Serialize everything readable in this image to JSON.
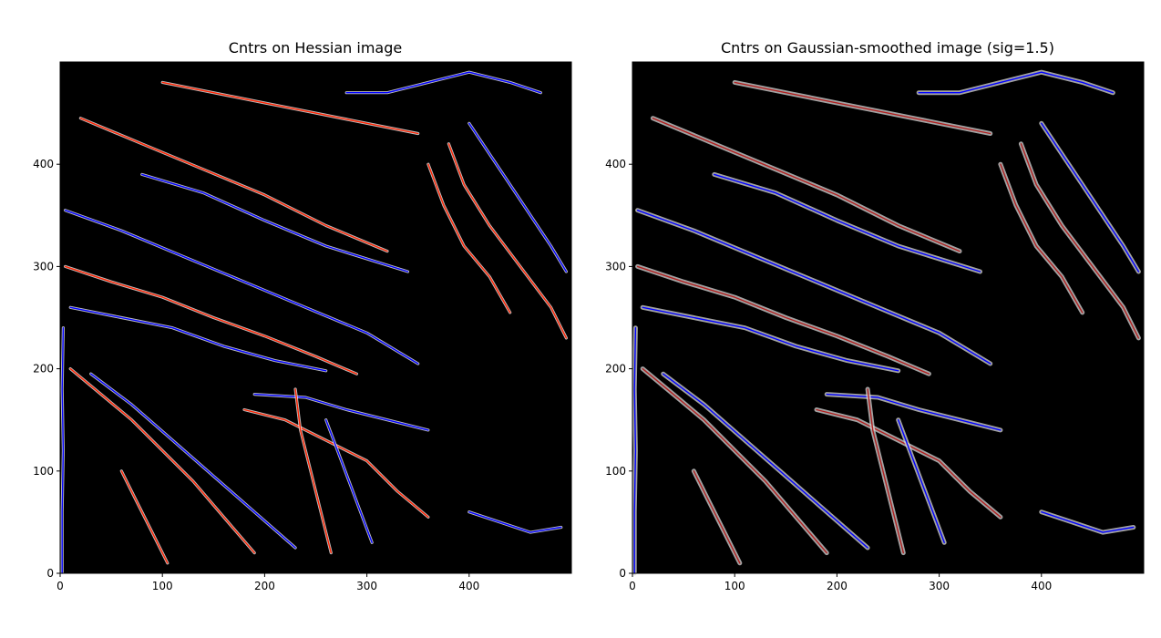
{
  "chart_data": [
    {
      "type": "heatmap",
      "title": "Cntrs on Hessian image",
      "xlabel": "",
      "ylabel": "",
      "xlim": [
        0,
        500
      ],
      "ylim": [
        0,
        500
      ],
      "origin": "lower",
      "background": "#000000",
      "xticks": [
        0,
        100,
        200,
        300,
        400
      ],
      "yticks": [
        0,
        100,
        200,
        300,
        400
      ],
      "contour_colors": [
        "#ff2200",
        "#ffffff",
        "#0000ff"
      ],
      "contours": [
        {
          "color": "#0000ff",
          "points": [
            [
              5,
              355
            ],
            [
              60,
              335
            ],
            [
              120,
              310
            ],
            [
              180,
              285
            ],
            [
              240,
              260
            ],
            [
              300,
              235
            ],
            [
              350,
              205
            ]
          ]
        },
        {
          "color": "#ff2200",
          "points": [
            [
              20,
              445
            ],
            [
              80,
              420
            ],
            [
              140,
              395
            ],
            [
              200,
              370
            ],
            [
              260,
              340
            ],
            [
              320,
              315
            ]
          ]
        },
        {
          "color": "#0000ff",
          "points": [
            [
              80,
              390
            ],
            [
              140,
              372
            ],
            [
              200,
              345
            ],
            [
              260,
              320
            ],
            [
              340,
              295
            ]
          ]
        },
        {
          "color": "#ff2200",
          "points": [
            [
              5,
              300
            ],
            [
              50,
              285
            ],
            [
              100,
              270
            ],
            [
              150,
              250
            ],
            [
              200,
              232
            ],
            [
              250,
              212
            ],
            [
              290,
              195
            ]
          ]
        },
        {
          "color": "#0000ff",
          "points": [
            [
              10,
              260
            ],
            [
              60,
              250
            ],
            [
              110,
              240
            ],
            [
              160,
              222
            ],
            [
              210,
              208
            ],
            [
              260,
              198
            ]
          ]
        },
        {
          "color": "#ff2200",
          "points": [
            [
              10,
              200
            ],
            [
              40,
              175
            ],
            [
              70,
              150
            ],
            [
              100,
              120
            ],
            [
              130,
              90
            ],
            [
              160,
              55
            ],
            [
              190,
              20
            ]
          ]
        },
        {
          "color": "#0000ff",
          "points": [
            [
              30,
              195
            ],
            [
              70,
              165
            ],
            [
              110,
              130
            ],
            [
              150,
              95
            ],
            [
              190,
              60
            ],
            [
              230,
              25
            ]
          ]
        },
        {
          "color": "#ff2200",
          "points": [
            [
              180,
              160
            ],
            [
              220,
              150
            ],
            [
              260,
              130
            ],
            [
              300,
              110
            ],
            [
              330,
              80
            ],
            [
              360,
              55
            ]
          ]
        },
        {
          "color": "#0000ff",
          "points": [
            [
              190,
              175
            ],
            [
              240,
              172
            ],
            [
              280,
              160
            ],
            [
              320,
              150
            ],
            [
              360,
              140
            ]
          ]
        },
        {
          "color": "#ff2200",
          "points": [
            [
              380,
              420
            ],
            [
              395,
              380
            ],
            [
              420,
              340
            ],
            [
              450,
              300
            ],
            [
              480,
              260
            ],
            [
              495,
              230
            ]
          ]
        },
        {
          "color": "#0000ff",
          "points": [
            [
              400,
              440
            ],
            [
              420,
              410
            ],
            [
              440,
              380
            ],
            [
              460,
              350
            ],
            [
              480,
              320
            ],
            [
              495,
              295
            ]
          ]
        },
        {
          "color": "#ff2200",
          "points": [
            [
              360,
              400
            ],
            [
              375,
              360
            ],
            [
              395,
              320
            ],
            [
              420,
              290
            ],
            [
              440,
              255
            ]
          ]
        },
        {
          "color": "#0000ff",
          "points": [
            [
              280,
              470
            ],
            [
              320,
              470
            ],
            [
              360,
              480
            ],
            [
              400,
              490
            ],
            [
              440,
              480
            ],
            [
              470,
              470
            ]
          ]
        },
        {
          "color": "#ff2200",
          "points": [
            [
              100,
              480
            ],
            [
              150,
              470
            ],
            [
              200,
              460
            ],
            [
              250,
              450
            ],
            [
              300,
              440
            ],
            [
              350,
              430
            ]
          ]
        },
        {
          "color": "#0000ff",
          "points": [
            [
              2,
              0
            ],
            [
              2,
              60
            ],
            [
              3,
              120
            ],
            [
              2,
              180
            ],
            [
              3,
              240
            ]
          ]
        },
        {
          "color": "#ff2200",
          "points": [
            [
              230,
              180
            ],
            [
              235,
              140
            ],
            [
              245,
              100
            ],
            [
              255,
              60
            ],
            [
              265,
              20
            ]
          ]
        },
        {
          "color": "#0000ff",
          "points": [
            [
              260,
              150
            ],
            [
              275,
              110
            ],
            [
              290,
              70
            ],
            [
              305,
              30
            ]
          ]
        },
        {
          "color": "#ff2200",
          "points": [
            [
              60,
              100
            ],
            [
              75,
              70
            ],
            [
              90,
              40
            ],
            [
              105,
              10
            ]
          ]
        },
        {
          "color": "#0000ff",
          "points": [
            [
              400,
              60
            ],
            [
              430,
              50
            ],
            [
              460,
              40
            ],
            [
              490,
              45
            ]
          ]
        }
      ]
    },
    {
      "type": "heatmap",
      "title": "Cntrs on Gaussian-smoothed image (sig=1.5)",
      "xlabel": "",
      "ylabel": "",
      "xlim": [
        0,
        500
      ],
      "ylim": [
        0,
        500
      ],
      "origin": "lower",
      "background": "#000000",
      "xticks": [
        0,
        100,
        200,
        300,
        400
      ],
      "yticks": [
        0,
        100,
        200,
        300,
        400
      ],
      "contour_colors": [
        "#b02020",
        "#d8d8d8",
        "#0000ff"
      ],
      "contours": [
        {
          "color": "#0000ff",
          "points": [
            [
              5,
              355
            ],
            [
              60,
              335
            ],
            [
              120,
              310
            ],
            [
              180,
              285
            ],
            [
              240,
              260
            ],
            [
              300,
              235
            ],
            [
              350,
              205
            ]
          ]
        },
        {
          "color": "#b02020",
          "points": [
            [
              20,
              445
            ],
            [
              80,
              420
            ],
            [
              140,
              395
            ],
            [
              200,
              370
            ],
            [
              260,
              340
            ],
            [
              320,
              315
            ]
          ]
        },
        {
          "color": "#0000ff",
          "points": [
            [
              80,
              390
            ],
            [
              140,
              372
            ],
            [
              200,
              345
            ],
            [
              260,
              320
            ],
            [
              340,
              295
            ]
          ]
        },
        {
          "color": "#b02020",
          "points": [
            [
              5,
              300
            ],
            [
              50,
              285
            ],
            [
              100,
              270
            ],
            [
              150,
              250
            ],
            [
              200,
              232
            ],
            [
              250,
              212
            ],
            [
              290,
              195
            ]
          ]
        },
        {
          "color": "#0000ff",
          "points": [
            [
              10,
              260
            ],
            [
              60,
              250
            ],
            [
              110,
              240
            ],
            [
              160,
              222
            ],
            [
              210,
              208
            ],
            [
              260,
              198
            ]
          ]
        },
        {
          "color": "#b02020",
          "points": [
            [
              10,
              200
            ],
            [
              40,
              175
            ],
            [
              70,
              150
            ],
            [
              100,
              120
            ],
            [
              130,
              90
            ],
            [
              160,
              55
            ],
            [
              190,
              20
            ]
          ]
        },
        {
          "color": "#0000ff",
          "points": [
            [
              30,
              195
            ],
            [
              70,
              165
            ],
            [
              110,
              130
            ],
            [
              150,
              95
            ],
            [
              190,
              60
            ],
            [
              230,
              25
            ]
          ]
        },
        {
          "color": "#b02020",
          "points": [
            [
              180,
              160
            ],
            [
              220,
              150
            ],
            [
              260,
              130
            ],
            [
              300,
              110
            ],
            [
              330,
              80
            ],
            [
              360,
              55
            ]
          ]
        },
        {
          "color": "#0000ff",
          "points": [
            [
              190,
              175
            ],
            [
              240,
              172
            ],
            [
              280,
              160
            ],
            [
              320,
              150
            ],
            [
              360,
              140
            ]
          ]
        },
        {
          "color": "#b02020",
          "points": [
            [
              380,
              420
            ],
            [
              395,
              380
            ],
            [
              420,
              340
            ],
            [
              450,
              300
            ],
            [
              480,
              260
            ],
            [
              495,
              230
            ]
          ]
        },
        {
          "color": "#0000ff",
          "points": [
            [
              400,
              440
            ],
            [
              420,
              410
            ],
            [
              440,
              380
            ],
            [
              460,
              350
            ],
            [
              480,
              320
            ],
            [
              495,
              295
            ]
          ]
        },
        {
          "color": "#b02020",
          "points": [
            [
              360,
              400
            ],
            [
              375,
              360
            ],
            [
              395,
              320
            ],
            [
              420,
              290
            ],
            [
              440,
              255
            ]
          ]
        },
        {
          "color": "#0000ff",
          "points": [
            [
              280,
              470
            ],
            [
              320,
              470
            ],
            [
              360,
              480
            ],
            [
              400,
              490
            ],
            [
              440,
              480
            ],
            [
              470,
              470
            ]
          ]
        },
        {
          "color": "#b02020",
          "points": [
            [
              100,
              480
            ],
            [
              150,
              470
            ],
            [
              200,
              460
            ],
            [
              250,
              450
            ],
            [
              300,
              440
            ],
            [
              350,
              430
            ]
          ]
        },
        {
          "color": "#0000ff",
          "points": [
            [
              2,
              0
            ],
            [
              2,
              60
            ],
            [
              3,
              120
            ],
            [
              2,
              180
            ],
            [
              3,
              240
            ]
          ]
        },
        {
          "color": "#b02020",
          "points": [
            [
              230,
              180
            ],
            [
              235,
              140
            ],
            [
              245,
              100
            ],
            [
              255,
              60
            ],
            [
              265,
              20
            ]
          ]
        },
        {
          "color": "#0000ff",
          "points": [
            [
              260,
              150
            ],
            [
              275,
              110
            ],
            [
              290,
              70
            ],
            [
              305,
              30
            ]
          ]
        },
        {
          "color": "#b02020",
          "points": [
            [
              60,
              100
            ],
            [
              75,
              70
            ],
            [
              90,
              40
            ],
            [
              105,
              10
            ]
          ]
        },
        {
          "color": "#0000ff",
          "points": [
            [
              400,
              60
            ],
            [
              430,
              50
            ],
            [
              460,
              40
            ],
            [
              490,
              45
            ]
          ]
        }
      ]
    }
  ]
}
